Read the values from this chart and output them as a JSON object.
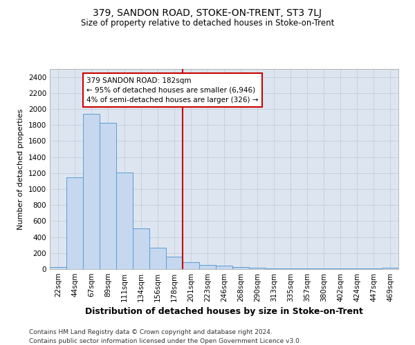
{
  "title": "379, SANDON ROAD, STOKE-ON-TRENT, ST3 7LJ",
  "subtitle": "Size of property relative to detached houses in Stoke-on-Trent",
  "xlabel": "Distribution of detached houses by size in Stoke-on-Trent",
  "ylabel": "Number of detached properties",
  "footnote1": "Contains HM Land Registry data © Crown copyright and database right 2024.",
  "footnote2": "Contains public sector information licensed under the Open Government Licence v3.0.",
  "bar_labels": [
    "22sqm",
    "44sqm",
    "67sqm",
    "89sqm",
    "111sqm",
    "134sqm",
    "156sqm",
    "178sqm",
    "201sqm",
    "223sqm",
    "246sqm",
    "268sqm",
    "290sqm",
    "313sqm",
    "335sqm",
    "357sqm",
    "380sqm",
    "402sqm",
    "424sqm",
    "447sqm",
    "469sqm"
  ],
  "bar_values": [
    30,
    1150,
    1940,
    1830,
    1210,
    510,
    270,
    155,
    85,
    50,
    42,
    22,
    18,
    5,
    5,
    5,
    5,
    5,
    5,
    5,
    20
  ],
  "bar_color": "#C5D8EF",
  "bar_edge_color": "#5B9BD5",
  "property_index": 7,
  "vline_color": "#CC0000",
  "annotation_line1": "379 SANDON ROAD: 182sqm",
  "annotation_line2": "← 95% of detached houses are smaller (6,946)",
  "annotation_line3": "4% of semi-detached houses are larger (326) →",
  "annotation_box_color": "#CC0000",
  "ylim": [
    0,
    2500
  ],
  "yticks": [
    0,
    200,
    400,
    600,
    800,
    1000,
    1200,
    1400,
    1600,
    1800,
    2000,
    2200,
    2400
  ],
  "grid_color": "#C8D0DC",
  "bg_color": "#DDE6F0",
  "title_fontsize": 10,
  "subtitle_fontsize": 8.5,
  "xlabel_fontsize": 9,
  "ylabel_fontsize": 8,
  "tick_fontsize": 7.5,
  "footnote_fontsize": 6.5
}
